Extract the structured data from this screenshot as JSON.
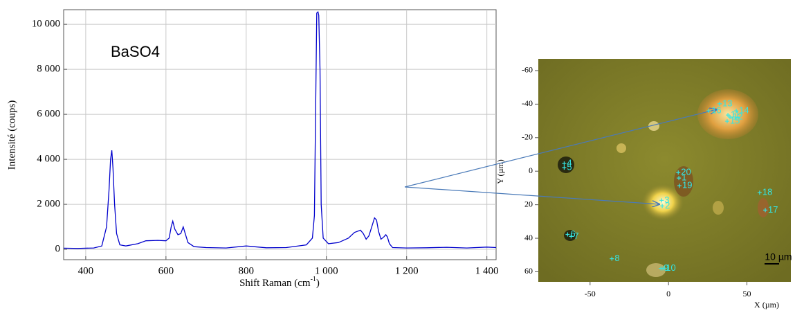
{
  "chart_data": [
    {
      "type": "line",
      "annotation": "BaSO4",
      "x_label": [
        "Shift Raman (cm",
        "-1",
        ")"
      ],
      "y_label": "Intensité (coups)",
      "x": [
        345,
        380,
        420,
        440,
        452,
        458,
        462,
        465,
        468,
        472,
        477,
        485,
        500,
        530,
        550,
        580,
        600,
        608,
        613,
        617,
        622,
        630,
        637,
        643,
        648,
        655,
        670,
        700,
        750,
        800,
        850,
        900,
        950,
        965,
        970,
        973,
        976,
        979,
        981,
        984,
        987,
        992,
        1005,
        1030,
        1055,
        1070,
        1085,
        1092,
        1099,
        1106,
        1113,
        1120,
        1125,
        1130,
        1136,
        1143,
        1148,
        1152,
        1157,
        1165,
        1200,
        1250,
        1300,
        1350,
        1400,
        1423
      ],
      "series": [
        {
          "name": "BaSO4",
          "color": "#0000cc",
          "values": [
            50,
            40,
            60,
            150,
            1000,
            2600,
            4000,
            4400,
            3600,
            2000,
            700,
            200,
            150,
            250,
            380,
            400,
            380,
            500,
            1000,
            1250,
            900,
            650,
            700,
            1000,
            700,
            300,
            120,
            80,
            60,
            150,
            70,
            80,
            200,
            500,
            1500,
            6000,
            10500,
            10550,
            10400,
            8000,
            2000,
            500,
            250,
            300,
            500,
            750,
            850,
            700,
            450,
            600,
            1000,
            1400,
            1300,
            800,
            450,
            550,
            650,
            550,
            250,
            80,
            60,
            70,
            90,
            60,
            100,
            80
          ]
        }
      ],
      "xlim": [
        345,
        1423
      ],
      "ylim": [
        -460,
        10650
      ],
      "xticks": [
        400,
        600,
        800,
        {
          "value": 1000,
          "label": "1 000"
        },
        {
          "value": 1200,
          "label": "1 200"
        },
        {
          "value": 1400,
          "label": "1 400"
        }
      ],
      "yticks": [
        0,
        {
          "value": 2000,
          "label": "2 000"
        },
        {
          "value": 4000,
          "label": "4 000"
        },
        {
          "value": 6000,
          "label": "6 000"
        },
        {
          "value": 8000,
          "label": "8 000"
        },
        {
          "value": 10000,
          "label": "10 000"
        }
      ],
      "grid": true
    },
    {
      "type": "scatter",
      "x_label": "X (µm)",
      "y_label": "Y (µm)",
      "scale_bar": "10 µm",
      "color": "#33e6e6",
      "labels": [
        "1",
        "2",
        "3",
        "4",
        "5",
        "6",
        "7",
        "8",
        "9",
        "10",
        "11",
        "12",
        "13",
        "14",
        "15",
        "16",
        "17",
        "18",
        "19",
        "20"
      ],
      "x": [
        6.6,
        -4.0,
        -4.4,
        -66.5,
        -66.5,
        -64.3,
        -62.1,
        -36.1,
        -4.8,
        -3.5,
        37.9,
        39.2,
        32.6,
        43.2,
        37.4,
        25.6,
        61.7,
        58.1,
        7.0,
        6.2
      ],
      "values": [
        4.1,
        20.7,
        17.4,
        -4.6,
        -2.1,
        37.7,
        38.9,
        52.2,
        58.0,
        58.0,
        -33.5,
        -32.3,
        -40.2,
        -36.0,
        -29.8,
        -36.0,
        23.2,
        12.8,
        8.7,
        0.8
      ],
      "xlim": [
        -83,
        78
      ],
      "ylim": [
        -67,
        66
      ],
      "xticks": [
        -50,
        0,
        50
      ],
      "yticks": [
        -60,
        -40,
        -20,
        0,
        20,
        40,
        60
      ]
    }
  ]
}
